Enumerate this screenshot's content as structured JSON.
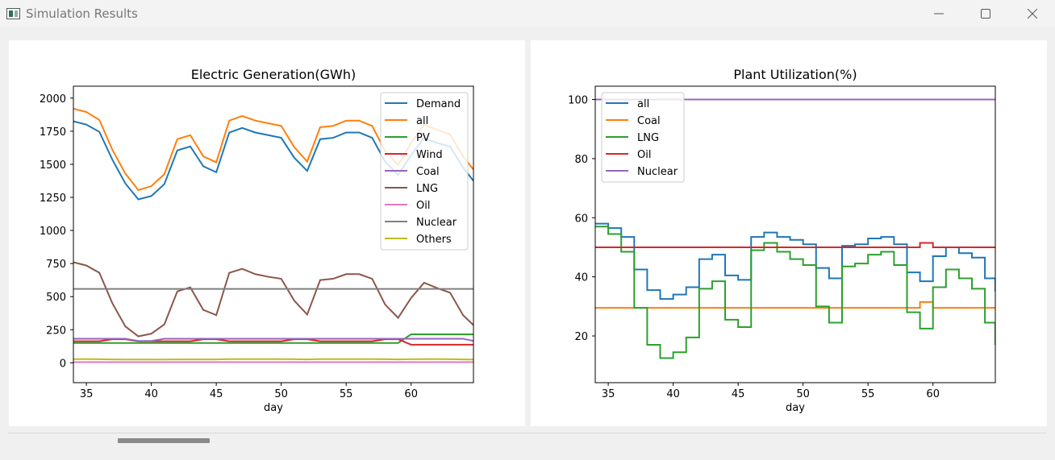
{
  "window": {
    "title": "Simulation Results",
    "minimize_icon": "minimize-icon",
    "maximize_icon": "maximize-icon",
    "close_icon": "close-icon"
  },
  "chart_data": [
    {
      "type": "line",
      "title": "Electric Generation(GWh)",
      "xlabel": "day",
      "ylabel": "",
      "xlim": [
        34,
        64.8
      ],
      "ylim": [
        -150,
        2090
      ],
      "xticks": [
        35,
        40,
        45,
        50,
        55,
        60
      ],
      "yticks": [
        0,
        250,
        500,
        750,
        1000,
        1250,
        1500,
        1750,
        2000
      ],
      "legend_position": "top-right",
      "series": [
        {
          "name": "Demand",
          "color": "#1f77b4",
          "x": [
            34,
            35,
            36,
            37,
            38,
            39,
            40,
            41,
            42,
            43,
            44,
            45,
            46,
            47,
            48,
            49,
            50,
            51,
            52,
            53,
            54,
            55,
            56,
            57,
            58,
            59,
            60,
            61,
            62,
            63,
            64,
            64.8
          ],
          "values": [
            1825,
            1800,
            1745,
            1535,
            1355,
            1235,
            1260,
            1350,
            1605,
            1635,
            1485,
            1440,
            1740,
            1775,
            1740,
            1720,
            1700,
            1550,
            1450,
            1690,
            1700,
            1740,
            1740,
            1700,
            1520,
            1420,
            1570,
            1700,
            1660,
            1635,
            1475,
            1375
          ]
        },
        {
          "name": "all",
          "color": "#ff7f0e",
          "x": [
            34,
            35,
            36,
            37,
            38,
            39,
            40,
            41,
            42,
            43,
            44,
            45,
            46,
            47,
            48,
            49,
            50,
            51,
            52,
            53,
            54,
            55,
            56,
            57,
            58,
            59,
            60,
            61,
            62,
            63,
            64,
            64.8
          ],
          "values": [
            1920,
            1895,
            1835,
            1610,
            1430,
            1305,
            1335,
            1425,
            1690,
            1720,
            1560,
            1515,
            1830,
            1865,
            1830,
            1810,
            1790,
            1630,
            1520,
            1780,
            1790,
            1830,
            1830,
            1790,
            1600,
            1495,
            1660,
            1800,
            1760,
            1725,
            1560,
            1460
          ]
        },
        {
          "name": "PV",
          "color": "#2ca02c",
          "x": [
            34,
            35,
            36,
            37,
            38,
            39,
            40,
            41,
            42,
            43,
            44,
            45,
            46,
            47,
            48,
            49,
            50,
            51,
            52,
            53,
            54,
            55,
            56,
            57,
            58,
            59,
            60,
            61,
            62,
            63,
            64,
            64.8
          ],
          "values": [
            150,
            150,
            150,
            150,
            150,
            150,
            150,
            150,
            150,
            150,
            150,
            150,
            150,
            150,
            150,
            150,
            150,
            150,
            150,
            150,
            150,
            150,
            150,
            150,
            150,
            150,
            215,
            215,
            215,
            215,
            215,
            215
          ]
        },
        {
          "name": "Wind",
          "color": "#d62728",
          "x": [
            34,
            35,
            36,
            37,
            38,
            39,
            40,
            41,
            42,
            43,
            44,
            45,
            46,
            47,
            48,
            49,
            50,
            51,
            52,
            53,
            54,
            55,
            56,
            57,
            58,
            59,
            60,
            61,
            62,
            63,
            64,
            64.8
          ],
          "values": [
            163,
            163,
            163,
            178,
            178,
            163,
            163,
            163,
            163,
            163,
            178,
            178,
            163,
            163,
            163,
            163,
            163,
            178,
            178,
            163,
            163,
            163,
            163,
            163,
            178,
            178,
            137,
            137,
            137,
            137,
            137,
            137
          ]
        },
        {
          "name": "Coal",
          "color": "#9467bd",
          "x": [
            34,
            35,
            36,
            37,
            38,
            39,
            40,
            41,
            42,
            43,
            44,
            45,
            46,
            47,
            48,
            49,
            50,
            51,
            52,
            53,
            54,
            55,
            56,
            57,
            58,
            59,
            60,
            61,
            62,
            63,
            64,
            64.8
          ],
          "values": [
            182,
            182,
            182,
            182,
            182,
            165,
            165,
            182,
            182,
            182,
            182,
            182,
            182,
            182,
            182,
            182,
            182,
            182,
            182,
            182,
            182,
            182,
            182,
            182,
            182,
            182,
            182,
            182,
            182,
            182,
            182,
            165
          ]
        },
        {
          "name": "LNG",
          "color": "#8c564b",
          "x": [
            34,
            35,
            36,
            37,
            38,
            39,
            40,
            41,
            42,
            43,
            44,
            45,
            46,
            47,
            48,
            49,
            50,
            51,
            52,
            53,
            54,
            55,
            56,
            57,
            58,
            59,
            60,
            61,
            62,
            63,
            64,
            64.8
          ],
          "values": [
            760,
            735,
            680,
            450,
            275,
            200,
            220,
            290,
            540,
            570,
            400,
            360,
            680,
            710,
            670,
            650,
            635,
            470,
            365,
            625,
            635,
            670,
            670,
            635,
            440,
            340,
            490,
            605,
            565,
            530,
            360,
            285
          ]
        },
        {
          "name": "Oil",
          "color": "#e377c2",
          "x": [
            34,
            35,
            36,
            37,
            38,
            39,
            40,
            41,
            42,
            43,
            44,
            45,
            46,
            47,
            48,
            49,
            50,
            51,
            52,
            53,
            54,
            55,
            56,
            57,
            58,
            59,
            60,
            61,
            62,
            63,
            64,
            64.8
          ],
          "values": [
            5,
            5,
            5,
            5,
            5,
            5,
            5,
            5,
            5,
            5,
            5,
            5,
            5,
            5,
            5,
            5,
            5,
            5,
            5,
            5,
            5,
            5,
            5,
            5,
            5,
            5,
            5,
            5,
            5,
            5,
            5,
            5
          ]
        },
        {
          "name": "Nuclear",
          "color": "#7f7f7f",
          "x": [
            34,
            64.8
          ],
          "values": [
            558,
            558
          ]
        },
        {
          "name": "Others",
          "color": "#bcbd22",
          "x": [
            34,
            35,
            36,
            37,
            38,
            39,
            40,
            41,
            42,
            43,
            44,
            45,
            46,
            47,
            48,
            49,
            50,
            51,
            52,
            53,
            54,
            55,
            56,
            57,
            58,
            59,
            60,
            61,
            62,
            63,
            64,
            64.8
          ],
          "values": [
            28,
            28,
            27,
            26,
            25,
            25,
            25,
            25,
            26,
            26,
            26,
            26,
            28,
            28,
            28,
            28,
            28,
            27,
            26,
            28,
            28,
            28,
            28,
            28,
            27,
            26,
            27,
            28,
            28,
            27,
            26,
            25
          ]
        }
      ]
    },
    {
      "type": "line",
      "title": "Plant Utilization(%)",
      "xlabel": "day",
      "ylabel": "",
      "drawstyle": "steps",
      "xlim": [
        34,
        64.8
      ],
      "ylim": [
        4.2,
        104.5
      ],
      "xticks": [
        35,
        40,
        45,
        50,
        55,
        60
      ],
      "yticks": [
        20,
        40,
        60,
        80,
        100
      ],
      "legend_position": "top-left",
      "series": [
        {
          "name": "all",
          "color": "#1f77b4",
          "x": [
            34,
            35,
            36,
            37,
            38,
            39,
            40,
            41,
            42,
            43,
            44,
            45,
            46,
            47,
            48,
            49,
            50,
            51,
            52,
            53,
            54,
            55,
            56,
            57,
            58,
            59,
            60,
            61,
            62,
            63,
            64,
            64.8
          ],
          "values": [
            58,
            56.5,
            53.5,
            42.5,
            35.5,
            32.5,
            34,
            36.5,
            46,
            47.5,
            40.5,
            39,
            53.5,
            55,
            53.5,
            52.5,
            51,
            43,
            39.5,
            50.5,
            51,
            53,
            53.5,
            51,
            41.5,
            38.5,
            47,
            50,
            48,
            46.5,
            39.5,
            35
          ]
        },
        {
          "name": "Coal",
          "color": "#ff7f0e",
          "x": [
            34,
            35,
            36,
            37,
            38,
            39,
            40,
            41,
            42,
            43,
            44,
            45,
            46,
            47,
            48,
            49,
            50,
            51,
            52,
            53,
            54,
            55,
            56,
            57,
            58,
            59,
            60,
            61,
            62,
            63,
            64,
            64.8
          ],
          "values": [
            29.5,
            29.5,
            29.5,
            29.5,
            29.5,
            29.5,
            29.5,
            29.5,
            29.5,
            29.5,
            29.5,
            29.5,
            29.5,
            29.5,
            29.5,
            29.5,
            29.5,
            29.5,
            29.5,
            29.5,
            29.5,
            29.5,
            29.5,
            29.5,
            29.5,
            31.5,
            29.5,
            29.5,
            29.5,
            29.5,
            29.5,
            29.5
          ]
        },
        {
          "name": "LNG",
          "color": "#2ca02c",
          "x": [
            34,
            35,
            36,
            37,
            38,
            39,
            40,
            41,
            42,
            43,
            44,
            45,
            46,
            47,
            48,
            49,
            50,
            51,
            52,
            53,
            54,
            55,
            56,
            57,
            58,
            59,
            60,
            61,
            62,
            63,
            64,
            64.8
          ],
          "values": [
            57,
            54.5,
            48.5,
            29.5,
            17,
            12.5,
            14.5,
            19.5,
            36,
            38.5,
            25.5,
            23,
            49,
            51.5,
            48.5,
            46,
            44,
            30,
            24.5,
            43.5,
            44.5,
            47.5,
            48.5,
            44,
            28,
            22.5,
            36.5,
            42.5,
            39.5,
            36,
            24.5,
            17
          ]
        },
        {
          "name": "Oil",
          "color": "#d62728",
          "x": [
            34,
            58,
            59,
            60,
            64.8
          ],
          "values": [
            50,
            50,
            51.5,
            50,
            50
          ]
        },
        {
          "name": "Nuclear",
          "color": "#9467bd",
          "x": [
            34,
            64.8
          ],
          "values": [
            100,
            100
          ]
        }
      ]
    }
  ]
}
